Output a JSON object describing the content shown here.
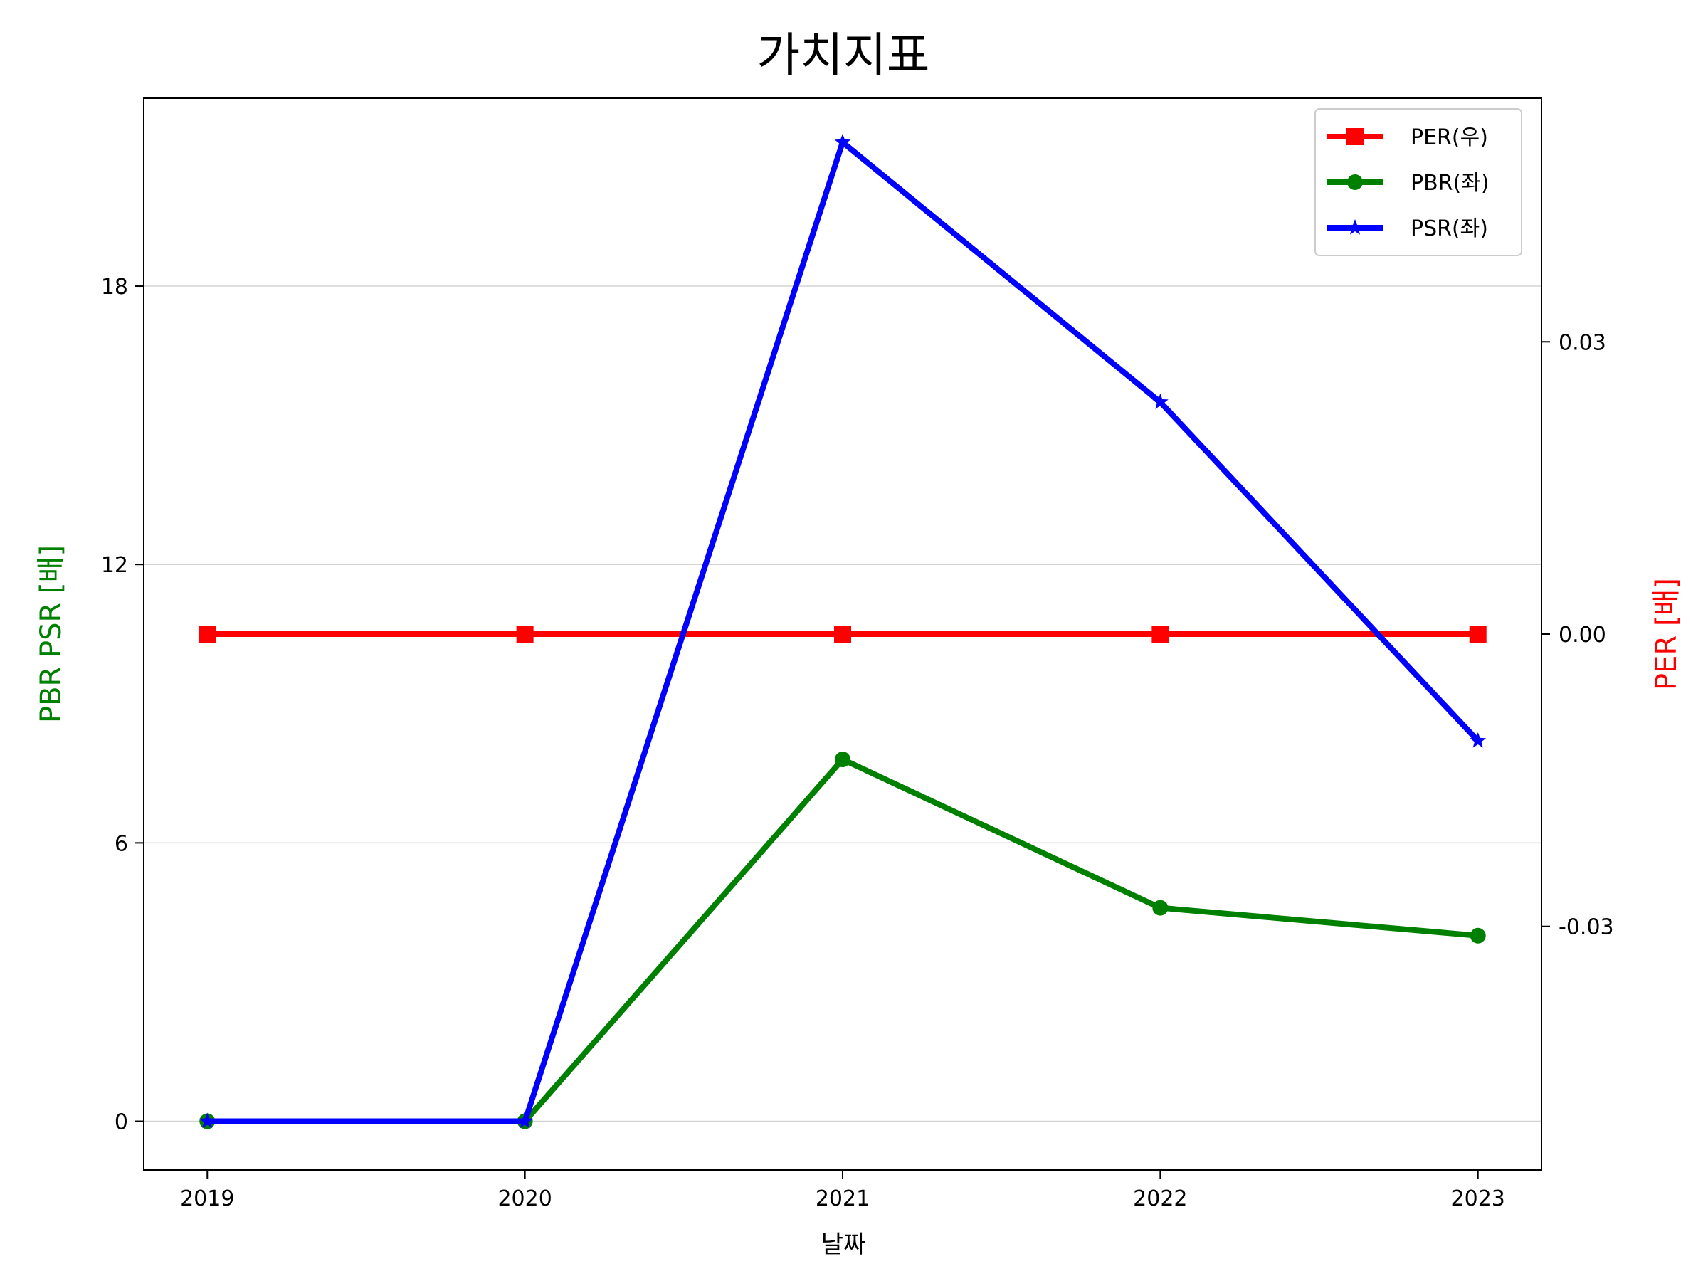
{
  "chart_data": {
    "type": "line",
    "title": "가치지표",
    "xlabel": "날짜",
    "ylabel_left": "PBR PSR [배]",
    "ylabel_right": "PER [배]",
    "categories": [
      "2019",
      "2020",
      "2021",
      "2022",
      "2023"
    ],
    "left_axis": {
      "ylim": [
        -1.05,
        22.05
      ],
      "ticks": [
        0,
        6,
        12,
        18
      ],
      "color": "#008000"
    },
    "right_axis": {
      "ylim": [
        -0.055,
        0.055
      ],
      "ticks": [
        -0.03,
        0.0,
        0.03
      ],
      "tick_labels": [
        "-0.03",
        "0.00",
        "0.03"
      ],
      "color": "#ff0000"
    },
    "grid": "horizontal",
    "legend_position": "top-right",
    "series": [
      {
        "name": "PER(우)",
        "axis": "right",
        "color": "#ff0000",
        "marker": "square",
        "values": [
          0,
          0,
          0,
          0,
          0
        ]
      },
      {
        "name": "PBR(좌)",
        "axis": "left",
        "color": "#008000",
        "marker": "circle",
        "values": [
          0,
          0,
          7.8,
          4.6,
          4.0
        ]
      },
      {
        "name": "PSR(좌)",
        "axis": "left",
        "color": "#0000ff",
        "marker": "star",
        "values": [
          0,
          0,
          21.1,
          15.5,
          8.2
        ]
      }
    ]
  }
}
